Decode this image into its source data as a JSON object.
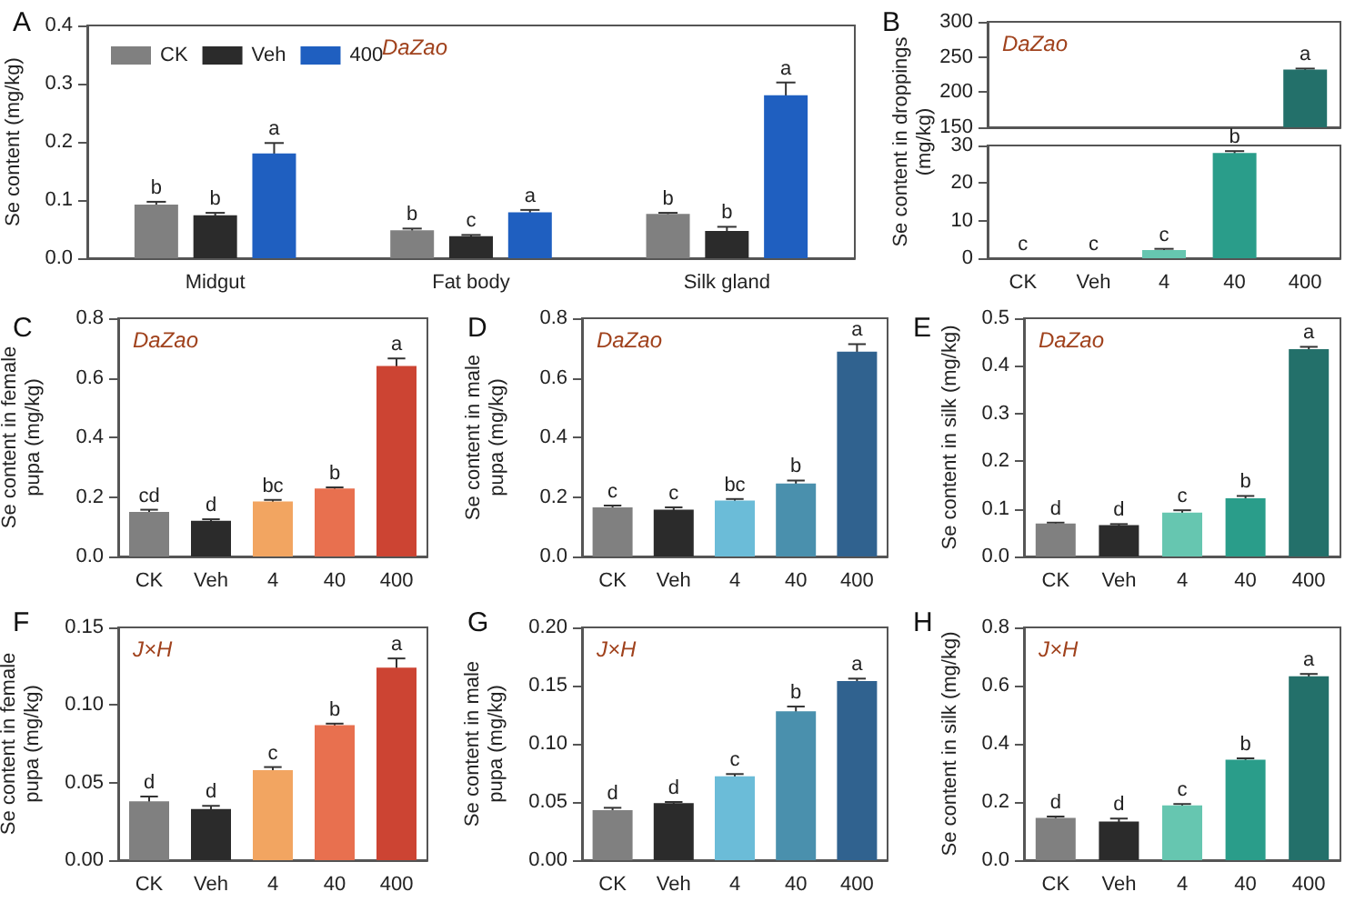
{
  "chart_data": [
    {
      "type": "bar",
      "title": "A",
      "ylabel": "Se content (mg/kg)",
      "categories": [
        "Midgut",
        "Fat body",
        "Silk gland"
      ],
      "legend": "top left",
      "annotations": [
        "DaZao"
      ],
      "ylim": [
        0,
        0.4
      ],
      "yticks": [
        {
          "value": 0,
          "label": "0.0"
        },
        0.1,
        0.2,
        0.3,
        0.4
      ],
      "series": [
        {
          "name": "CK",
          "color": "#808080",
          "values": [
            0.092,
            0.048,
            0.076
          ],
          "errors": [
            0.005,
            0.003,
            0.002
          ],
          "value_labels": [
            "b",
            "b",
            "b"
          ]
        },
        {
          "name": "Veh",
          "color": "#2b2b2b",
          "values": [
            0.074,
            0.038,
            0.047
          ],
          "errors": [
            0.004,
            0.002,
            0.007
          ],
          "value_labels": [
            "b",
            "c",
            "b"
          ]
        },
        {
          "name": "400",
          "color": "#1f5fc0",
          "values": [
            0.18,
            0.079,
            0.28
          ],
          "errors": [
            0.018,
            0.004,
            0.022
          ],
          "value_labels": [
            "a",
            "a",
            "a"
          ]
        }
      ]
    },
    {
      "type": "bar",
      "title": "B",
      "ylabel": "Se content in droppings (mg/kg)",
      "categories": [
        null,
        null,
        null,
        null,
        null
      ],
      "annotations": [
        "DaZao"
      ],
      "tick_labels": "y",
      "ylim": [
        150,
        300
      ],
      "yticks": [
        150,
        200,
        250,
        300
      ],
      "values": [
        null,
        null,
        null,
        null,
        232
      ],
      "errors": [
        null,
        null,
        null,
        null,
        1.5
      ],
      "value_labels": [
        null,
        null,
        null,
        null,
        "a"
      ],
      "colors": [
        "#808080",
        "#2b2b2b",
        "#66c6b0",
        "#2a9d8a",
        "#23706a"
      ]
    },
    {
      "type": "bar",
      "categories": [
        "CK",
        "Veh",
        "4",
        "40",
        "400"
      ],
      "ylim": [
        0,
        30
      ],
      "yticks": [
        0,
        10,
        20,
        30
      ],
      "values": [
        0,
        0,
        2.2,
        28,
        null
      ],
      "errors": [
        null,
        null,
        0.3,
        0.5,
        null
      ],
      "value_labels": [
        "c",
        "c",
        "c",
        "b",
        null
      ],
      "colors": [
        "#808080",
        "#2b2b2b",
        "#66c6b0",
        "#2a9d8a",
        "#23706a"
      ]
    },
    {
      "type": "bar",
      "title": "C",
      "ylabel": "Se content in female pupa (mg/kg)",
      "categories": [
        "CK",
        "Veh",
        "4",
        "40",
        "400"
      ],
      "annotations": [
        "DaZao"
      ],
      "ylim": [
        0,
        0.8
      ],
      "yticks": [
        {
          "value": 0,
          "label": "0.0"
        },
        0.2,
        0.4,
        0.6,
        0.8
      ],
      "values": [
        0.15,
        0.12,
        0.185,
        0.228,
        0.64
      ],
      "errors": [
        0.007,
        0.005,
        0.005,
        0.004,
        0.025
      ],
      "value_labels": [
        "cd",
        "d",
        "bc",
        "b",
        "a"
      ],
      "colors": [
        "#808080",
        "#2b2b2b",
        "#f2a561",
        "#e8704f",
        "#cc4433"
      ]
    },
    {
      "type": "bar",
      "title": "D",
      "ylabel": "Se content in male pupa (mg/kg)",
      "categories": [
        "CK",
        "Veh",
        "4",
        "40",
        "400"
      ],
      "annotations": [
        "DaZao"
      ],
      "ylim": [
        0,
        0.8
      ],
      "yticks": [
        {
          "value": 0,
          "label": "0.0"
        },
        0.2,
        0.4,
        0.6,
        0.8
      ],
      "values": [
        0.165,
        0.157,
        0.188,
        0.245,
        0.688
      ],
      "errors": [
        0.006,
        0.008,
        0.005,
        0.01,
        0.025
      ],
      "value_labels": [
        "c",
        "c",
        "bc",
        "b",
        "a"
      ],
      "colors": [
        "#808080",
        "#2b2b2b",
        "#6bbcd8",
        "#4a90ad",
        "#30628f"
      ]
    },
    {
      "type": "bar",
      "title": "E",
      "ylabel": "Se content in silk (mg/kg)",
      "categories": [
        "CK",
        "Veh",
        "4",
        "40",
        "400"
      ],
      "annotations": [
        "DaZao"
      ],
      "ylim": [
        0,
        0.5
      ],
      "yticks": [
        {
          "value": 0,
          "label": "0.0"
        },
        0.1,
        0.2,
        0.3,
        0.4,
        0.5
      ],
      "values": [
        0.069,
        0.066,
        0.092,
        0.122,
        0.435
      ],
      "errors": [
        0.002,
        0.002,
        0.005,
        0.005,
        0.005
      ],
      "value_labels": [
        "d",
        "d",
        "c",
        "b",
        "a"
      ],
      "colors": [
        "#808080",
        "#2b2b2b",
        "#66c6b0",
        "#2a9d8a",
        "#23706a"
      ]
    },
    {
      "type": "bar",
      "title": "F",
      "ylabel": "Se content in female pupa (mg/kg)",
      "categories": [
        "CK",
        "Veh",
        "4",
        "40",
        "400"
      ],
      "annotations": [
        "J×H"
      ],
      "ylim": [
        0,
        0.15
      ],
      "yticks": [
        {
          "value": 0,
          "label": "0.00"
        },
        0.05,
        {
          "value": 0.1,
          "label": "0.10"
        },
        0.15
      ],
      "values": [
        0.038,
        0.033,
        0.058,
        0.087,
        0.124
      ],
      "errors": [
        0.003,
        0.002,
        0.002,
        0.001,
        0.006
      ],
      "value_labels": [
        "d",
        "d",
        "c",
        "b",
        "a"
      ],
      "colors": [
        "#808080",
        "#2b2b2b",
        "#f2a561",
        "#e8704f",
        "#cc4433"
      ]
    },
    {
      "type": "bar",
      "title": "G",
      "ylabel": "Se content in male pupa (mg/kg)",
      "categories": [
        "CK",
        "Veh",
        "4",
        "40",
        "400"
      ],
      "annotations": [
        "J×H"
      ],
      "ylim": [
        0,
        0.2
      ],
      "yticks": [
        {
          "value": 0,
          "label": "0.00"
        },
        0.05,
        {
          "value": 0.1,
          "label": "0.10"
        },
        0.15,
        {
          "value": 0.2,
          "label": "0.20"
        }
      ],
      "values": [
        0.043,
        0.049,
        0.072,
        0.128,
        0.154
      ],
      "errors": [
        0.002,
        0.001,
        0.002,
        0.004,
        0.002
      ],
      "value_labels": [
        "d",
        "d",
        "c",
        "b",
        "a"
      ],
      "colors": [
        "#808080",
        "#2b2b2b",
        "#6bbcd8",
        "#4a90ad",
        "#30628f"
      ]
    },
    {
      "type": "bar",
      "title": "H",
      "ylabel": "Se content in silk (mg/kg)",
      "categories": [
        "CK",
        "Veh",
        "4",
        "40",
        "400"
      ],
      "annotations": [
        "J×H"
      ],
      "ylim": [
        0,
        0.8
      ],
      "yticks": [
        {
          "value": 0,
          "label": "0.0"
        },
        0.2,
        0.4,
        0.6,
        0.8
      ],
      "values": [
        0.145,
        0.133,
        0.188,
        0.345,
        0.632
      ],
      "errors": [
        0.005,
        0.01,
        0.005,
        0.005,
        0.008
      ],
      "value_labels": [
        "d",
        "d",
        "c",
        "b",
        "a"
      ],
      "colors": [
        "#808080",
        "#2b2b2b",
        "#66c6b0",
        "#2a9d8a",
        "#23706a"
      ]
    }
  ]
}
